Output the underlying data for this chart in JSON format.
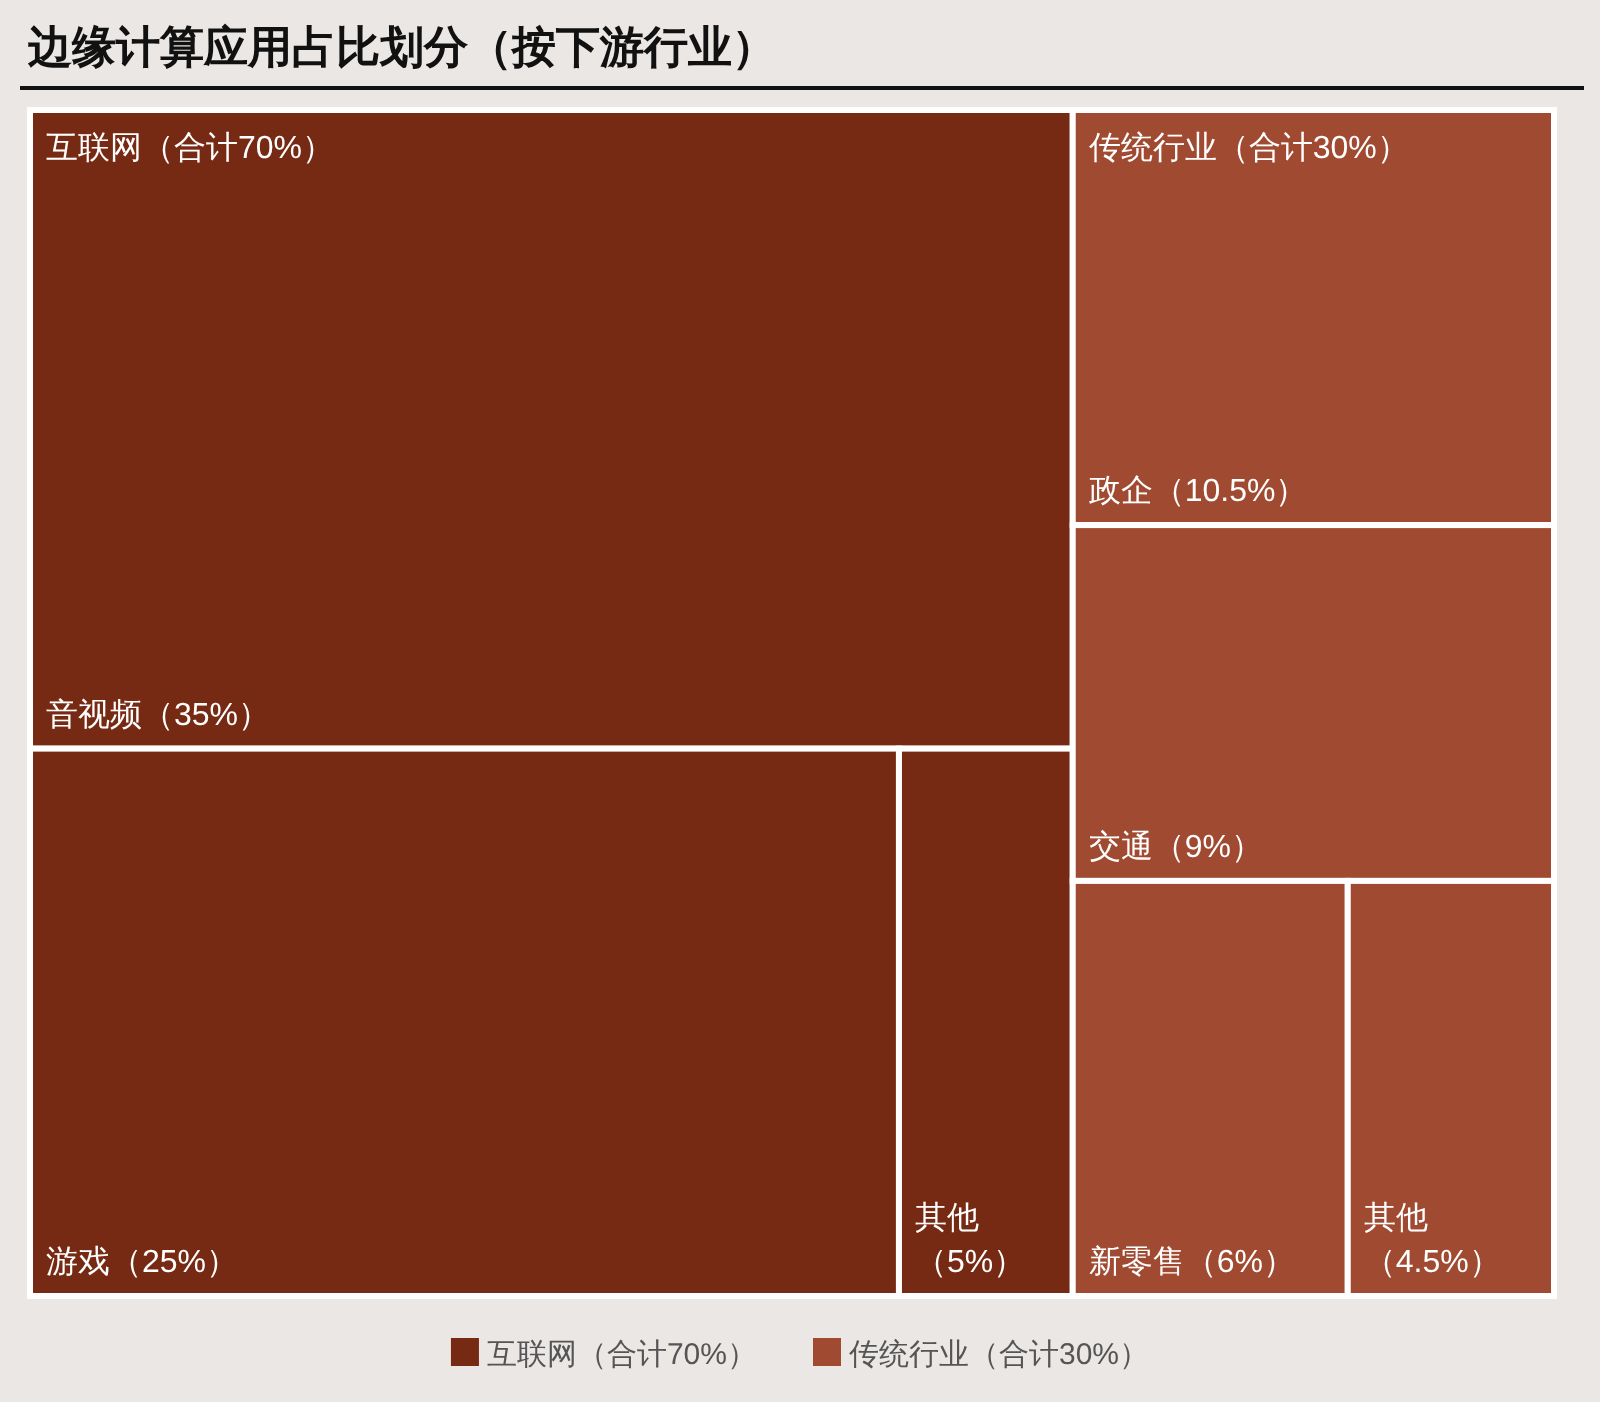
{
  "chart_data": {
    "type": "other",
    "title": "边缘计算应用占比划分（按下游行业）",
    "categories": [
      "音视频",
      "游戏",
      "其他",
      "政企",
      "交通",
      "新零售",
      "其他"
    ],
    "series": [
      {
        "name": "互联网（合计70%）",
        "color": "#772a13",
        "values": [
          35,
          25,
          5,
          null,
          null,
          null,
          null
        ],
        "value_labels": [
          "（35%）",
          "（25%）",
          "（5%）",
          null,
          null,
          null,
          null
        ]
      },
      {
        "name": "传统行业（合计30%）",
        "color": "#a04a31",
        "values": [
          null,
          null,
          null,
          10.5,
          9,
          6,
          4.5
        ],
        "value_labels": [
          null,
          null,
          null,
          "（10.5%）",
          "（9%）",
          "（6%）",
          "（4.5%）"
        ]
      }
    ],
    "legend": "bottom"
  }
}
